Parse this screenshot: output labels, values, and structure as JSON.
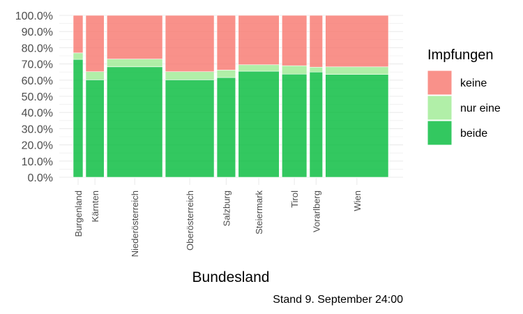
{
  "chart_data": {
    "type": "mosaic",
    "xlabel": "Bundesland",
    "caption": "Stand 9. September 24:00",
    "legend": {
      "title": "Impfungen",
      "position": "right",
      "entries": [
        {
          "key": "keine",
          "label": "keine",
          "color": "#F8766D"
        },
        {
          "key": "nur_eine",
          "label": "nur eine",
          "color": "#9DEB92"
        },
        {
          "key": "beide",
          "label": "beide",
          "color": "#00BA38"
        }
      ]
    },
    "y_ticks": [
      "0.0%",
      "10.0%",
      "20.0%",
      "30.0%",
      "40.0%",
      "50.0%",
      "60.0%",
      "70.0%",
      "80.0%",
      "90.0%",
      "100.0%"
    ],
    "ylim": [
      0,
      1
    ],
    "grid": true,
    "categories": [
      "Burgenland",
      "Kärnten",
      "Niederösterreich",
      "Oberösterreich",
      "Salzburg",
      "Steiermark",
      "Tirol",
      "Vorarlberg",
      "Wien"
    ],
    "category_share": [
      0.033,
      0.062,
      0.188,
      0.165,
      0.063,
      0.138,
      0.084,
      0.044,
      0.213
    ],
    "beide": [
      0.728,
      0.602,
      0.682,
      0.602,
      0.616,
      0.655,
      0.637,
      0.65,
      0.635
    ],
    "nur_eine": [
      0.04,
      0.05,
      0.048,
      0.05,
      0.046,
      0.04,
      0.052,
      0.03,
      0.047
    ],
    "keine": [
      0.232,
      0.348,
      0.27,
      0.348,
      0.338,
      0.305,
      0.311,
      0.32,
      0.318
    ]
  }
}
